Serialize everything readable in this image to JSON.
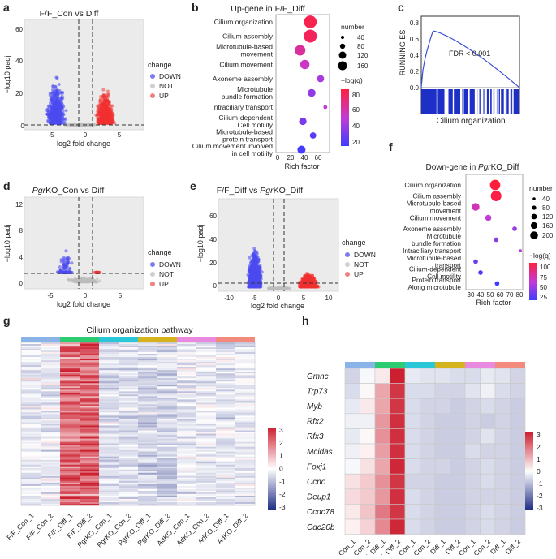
{
  "panels": {
    "a": {
      "letter": "a",
      "title": "F/F_Con vs Diff",
      "xlabel": "log2 fold change",
      "ylabel": "−log10 padj",
      "xticks": [
        "-5",
        "0",
        "5"
      ],
      "yticks": [
        "0",
        "20",
        "40",
        "60"
      ],
      "legend_title": "change",
      "legend": [
        "DOWN",
        "NOT",
        "UP"
      ]
    },
    "b": {
      "letter": "b",
      "title": "Up-gene in F/F_Diff",
      "xlabel": "Rich factor",
      "xticks": [
        "0",
        "20",
        "40",
        "60"
      ],
      "size_title": "number",
      "sizes": [
        "40",
        "80",
        "120",
        "160"
      ],
      "color_title": "−log(q)",
      "colors": [
        "80",
        "60",
        "40",
        "20"
      ]
    },
    "c": {
      "letter": "c",
      "ylabel": "RUNNING ES",
      "yticks": [
        "0.0",
        "0.2",
        "0.4",
        "0.6",
        "0.8"
      ],
      "note": "FDR < 0.001",
      "xlabel": "Cilium organization"
    },
    "d": {
      "letter": "d",
      "title_italic": "Pgr",
      "title_rest": "KO_Con vs Diff",
      "xlabel": "log2 fold change",
      "ylabel": "−log10 padj",
      "xticks": [
        "-5",
        "0",
        "5"
      ],
      "yticks": [
        "0",
        "4",
        "8",
        "12"
      ],
      "legend_title": "change",
      "legend": [
        "DOWN",
        "NOT",
        "UP"
      ]
    },
    "e": {
      "letter": "e",
      "title_a": "F/F_Diff vs ",
      "title_italic": "Pgr",
      "title_b": "KO_Diff",
      "xlabel": "log2 fold change",
      "ylabel": "−log10 padj",
      "xticks": [
        "-10",
        "-5",
        "0",
        "5",
        "10"
      ],
      "yticks": [
        "0",
        "20",
        "40",
        "60"
      ],
      "legend_title": "change",
      "legend": [
        "DOWN",
        "NOT",
        "UP"
      ]
    },
    "f": {
      "letter": "f",
      "title_a": "Down-gene in ",
      "title_italic": "Pgr",
      "title_b": "KO_Diff",
      "xlabel": "Rich factor",
      "xticks": [
        "30",
        "40",
        "50",
        "60",
        "70",
        "80"
      ],
      "size_title": "number",
      "sizes": [
        "40",
        "80",
        "120",
        "160",
        "200"
      ],
      "color_title": "−log(q)",
      "colors": [
        "100",
        "75",
        "50",
        "25"
      ]
    },
    "g": {
      "letter": "g",
      "title": "Cilium organization pathway",
      "scale": [
        "3",
        "2",
        "1",
        "0",
        "-1",
        "-2",
        "-3"
      ]
    },
    "h": {
      "letter": "h",
      "scale": [
        "3",
        "2",
        "1",
        "0",
        "-1",
        "-2",
        "-3"
      ]
    }
  },
  "samples": [
    "F/F_Con_1",
    "F/F_Con_2",
    "F/F_Diff_1",
    "F/F_Diff_2",
    "PgrKO_Con_1",
    "PgrKO_Con_2",
    "PgrKO_Diff_1",
    "PgrKO_Diff_2",
    "AdKO_Con_1",
    "AdKO_Con_2",
    "AdKO_Diff_1",
    "AdKO_Diff_2"
  ],
  "group_colors": [
    "#8ab4e8",
    "#2ecc71",
    "#29c7d8",
    "#d4b31c",
    "#e98ae0",
    "#f28a7e"
  ],
  "chart_data": [
    {
      "panel": "a",
      "type": "scatter",
      "title": "F/F_Con vs Diff",
      "xlabel": "log2 fold change",
      "ylabel": "−log10 padj",
      "xlim": [
        -8,
        9
      ],
      "ylim": [
        0,
        70
      ],
      "series": [
        {
          "name": "DOWN",
          "peak": {
            "x": -5.5,
            "y": 66
          }
        },
        {
          "name": "NOT"
        },
        {
          "name": "UP",
          "peak": {
            "x": 5,
            "y": 45
          }
        }
      ],
      "thresholds": {
        "x": [
          -1,
          1
        ],
        "y": 1.3
      }
    },
    {
      "panel": "b",
      "type": "scatter",
      "title": "Up-gene in F/F_Diff",
      "xlabel": "Rich factor",
      "categories": [
        "Cilium organization",
        "Cilium assembly",
        "Microtubule-based movement",
        "Cilium movement",
        "Axoneme assembly",
        "Microtubule bundle formation",
        "Intraciliary transport",
        "Cilium-dependent Cell motility",
        "Microtubule-based protein transport",
        "Cilium movement involved in cell motility"
      ],
      "rich_factor": [
        48,
        48,
        33,
        40,
        63,
        50,
        70,
        37,
        52,
        35
      ],
      "number": [
        160,
        165,
        110,
        85,
        50,
        60,
        15,
        55,
        40,
        65
      ],
      "neg_log_q": [
        95,
        92,
        75,
        65,
        52,
        45,
        60,
        38,
        28,
        22
      ]
    },
    {
      "panel": "c",
      "type": "line",
      "ylabel": "RUNNING ES",
      "xlabel": "Cilium organization",
      "note": "FDR < 0.001",
      "ylim": [
        0,
        0.8
      ],
      "peak_es": 0.7
    },
    {
      "panel": "d",
      "type": "scatter",
      "title": "PgrKO_Con vs Diff",
      "xlabel": "log2 fold change",
      "ylabel": "−log10 padj",
      "xlim": [
        -8,
        8
      ],
      "ylim": [
        0,
        13
      ],
      "series": [
        {
          "name": "DOWN",
          "peak": {
            "x": -4.5,
            "y": 12
          }
        },
        {
          "name": "NOT"
        },
        {
          "name": "UP",
          "peak": {
            "x": 2,
            "y": 4
          }
        }
      ]
    },
    {
      "panel": "e",
      "type": "scatter",
      "title": "F/F_Diff vs PgrKO_Diff",
      "xlabel": "log2 fold change",
      "ylabel": "−log10 padj",
      "xlim": [
        -11,
        11
      ],
      "ylim": [
        0,
        70
      ],
      "series": [
        {
          "name": "DOWN",
          "peak": {
            "x": -4.5,
            "y": 65
          }
        },
        {
          "name": "NOT"
        },
        {
          "name": "UP",
          "peak": {
            "x": 6,
            "y": 21
          }
        }
      ]
    },
    {
      "panel": "f",
      "type": "scatter",
      "title": "Down-gene in PgrKO_Diff",
      "xlabel": "Rich factor",
      "categories": [
        "Cilium organization",
        "Cilium assembly",
        "Microtubule-based movement",
        "Cilium movement",
        "Axoneme assembly",
        "Microtubule bundle formation",
        "Intraciliary transport",
        "Microtubule-based transport",
        "Cilium-dependent Cell motility",
        "Protein transport Along microtubule"
      ],
      "rich_factor": [
        55,
        56,
        35,
        48,
        75,
        56,
        81,
        35,
        40,
        57
      ],
      "number": [
        200,
        210,
        110,
        70,
        40,
        40,
        15,
        40,
        40,
        40
      ],
      "neg_log_q": [
        115,
        112,
        80,
        70,
        55,
        50,
        65,
        40,
        30,
        25
      ]
    },
    {
      "panel": "g",
      "type": "heatmap",
      "title": "Cilium organization pathway",
      "columns": 12,
      "scale": [
        -3,
        3
      ],
      "pattern": "F/F_Diff columns high (red); others low"
    },
    {
      "panel": "h",
      "type": "heatmap",
      "rows": [
        "Gmnc",
        "Trp73",
        "Myb",
        "Rfx2",
        "Rfx3",
        "Mcidas",
        "Foxj1",
        "Ccno",
        "Deup1",
        "Ccdc78",
        "Cdc20b"
      ],
      "columns": 12,
      "scale": [
        -3,
        3
      ],
      "values": [
        [
          -0.6,
          -0.1,
          0.3,
          3,
          -0.3,
          -0.4,
          -0.4,
          -0.5,
          -0.5,
          -0.3,
          -0.4,
          -0.6
        ],
        [
          -0.5,
          0.1,
          1.2,
          2.7,
          -0.5,
          -0.5,
          -0.6,
          -0.6,
          -0.4,
          -0.2,
          -0.5,
          -0.6
        ],
        [
          -0.3,
          0.3,
          1.2,
          2.7,
          -0.5,
          -0.6,
          -0.6,
          -0.7,
          -0.6,
          -0.5,
          -0.6,
          -0.7
        ],
        [
          -0.2,
          -0.2,
          1.4,
          2.8,
          -0.5,
          -0.6,
          -0.7,
          -0.7,
          -0.6,
          -0.7,
          -0.6,
          -0.7
        ],
        [
          -0.3,
          0.1,
          1.5,
          2.8,
          -0.5,
          -0.6,
          -0.7,
          -0.7,
          -0.6,
          -0.4,
          -0.6,
          -0.7
        ],
        [
          -0.2,
          0.2,
          1.3,
          2.8,
          -0.5,
          -0.6,
          -0.7,
          -0.7,
          -0.5,
          -0.6,
          -0.6,
          -0.7
        ],
        [
          -0.1,
          0.4,
          1.2,
          2.9,
          -0.5,
          -0.6,
          -0.6,
          -0.7,
          -0.6,
          -0.5,
          -0.6,
          -0.7
        ],
        [
          0.4,
          0.7,
          1.5,
          2.7,
          -0.6,
          -0.6,
          -0.7,
          -0.7,
          -0.6,
          -0.5,
          -0.6,
          -0.7
        ],
        [
          0.5,
          0.7,
          1.4,
          2.8,
          -0.5,
          -0.6,
          -0.7,
          -0.7,
          -0.6,
          -0.6,
          -0.6,
          -0.7
        ],
        [
          0.3,
          0.8,
          1.8,
          2.7,
          -0.5,
          -0.6,
          -0.7,
          -0.7,
          -0.6,
          -0.5,
          -0.6,
          -0.7
        ],
        [
          0.2,
          0.6,
          1.6,
          2.9,
          -0.5,
          -0.6,
          -0.7,
          -0.7,
          -0.6,
          -0.5,
          -0.6,
          -0.7
        ]
      ]
    }
  ]
}
